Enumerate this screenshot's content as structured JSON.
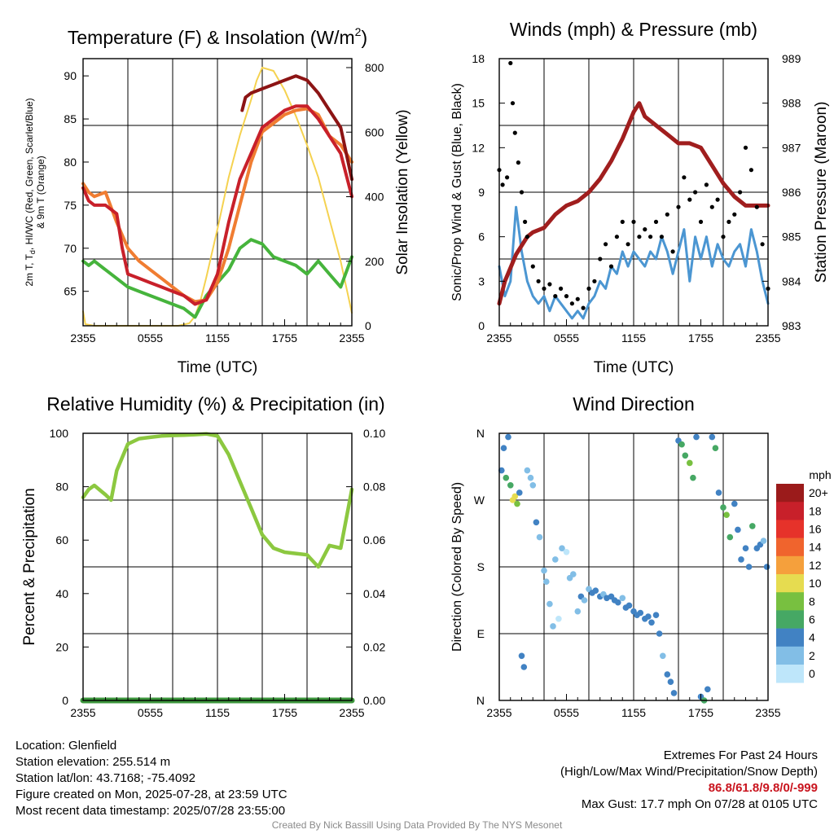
{
  "panels": {
    "temp": {
      "title_main": "Temperature (F) & Insolation (W/m",
      "title_sup": "2",
      "title_end": ")",
      "ylabel_left_line1_parts": [
        "2m T, T",
        "d",
        ", HI/WC (Red, Green, Scarlet/Blue)"
      ],
      "ylabel_left_line2": "& 9m T (Orange)",
      "ylabel_right": "Solar Insolation (Yellow)",
      "xlabel": "Time (UTC)",
      "yticks_left": [
        "90",
        "85",
        "80",
        "75",
        "70",
        "65"
      ],
      "yticks_right": [
        "800",
        "600",
        "400",
        "200",
        "0"
      ],
      "xticks": [
        "2355",
        "0555",
        "1155",
        "1755",
        "2355"
      ]
    },
    "wind": {
      "title": "Winds (mph) & Pressure (mb)",
      "ylabel_left": "Sonic/Prop Wind & Gust (Blue, Black)",
      "ylabel_right": "Station Pressure (Maroon)",
      "xlabel": "Time (UTC)",
      "yticks_left": [
        "18",
        "15",
        "12",
        "9",
        "6",
        "3",
        "0"
      ],
      "yticks_right": [
        "989",
        "988",
        "987",
        "986",
        "985",
        "984",
        "983"
      ],
      "xticks": [
        "2355",
        "0555",
        "1155",
        "1755",
        "2355"
      ]
    },
    "rh": {
      "title": "Relative Humidity (%) & Precipitation (in)",
      "ylabel_left": "Percent & Precipitation",
      "yticks_left": [
        "100",
        "80",
        "60",
        "40",
        "20",
        "0"
      ],
      "yticks_right": [
        "0.10",
        "0.08",
        "0.06",
        "0.04",
        "0.02",
        "0.00"
      ],
      "xticks": [
        "2355",
        "0555",
        "1155",
        "1755",
        "2355"
      ]
    },
    "dir": {
      "title": "Wind Direction",
      "ylabel_left": "Direction (Colored By Speed)",
      "yticks_left": [
        "N",
        "W",
        "S",
        "E",
        "N"
      ],
      "xticks": [
        "2355",
        "0555",
        "1155",
        "1755",
        "2355"
      ],
      "legend_title": "mph",
      "legend_labels": [
        "20+",
        "18",
        "16",
        "14",
        "12",
        "10",
        "8",
        "6",
        "4",
        "2",
        "0"
      ]
    }
  },
  "info": {
    "location": "Location: Glenfield",
    "elevation": "Station elevation: 255.514 m",
    "latlon": "Station lat/lon: 43.7168; -75.4092",
    "created": "Figure created on Mon, 2025-07-28, at 23:59 UTC",
    "recent": "Most recent data timestamp: 2025/07/28 23:55:00",
    "extremes_title": "Extremes For Past 24 Hours",
    "extremes_sub": "(High/Low/Max Wind/Precipitation/Snow Depth)",
    "extremes_values": "86.8/61.8/9.8/0/-999",
    "max_gust": "Max Gust: 17.7 mph On 07/28 at 0105 UTC"
  },
  "credit": "Created By Nick Bassill Using Data Provided By The NYS Mesonet",
  "colors": {
    "temp_red": "#c8202a",
    "dewpoint_green": "#46b43c",
    "heat_index_scarlet": "#8c1414",
    "temp9m_orange": "#f07d32",
    "insolation_yellow": "#f5d250",
    "wind_blue": "#4b96d2",
    "gust_black": "#000000",
    "pressure_maroon": "#a01e1e",
    "rh_green": "#8cc840",
    "precip_green": "#3c963c",
    "speed_scale": [
      "#9b1b1b",
      "#c8202a",
      "#e6322a",
      "#f0642d",
      "#f5a03c",
      "#e6dc50",
      "#78c040",
      "#46a864",
      "#4182c3",
      "#82bee6",
      "#bee6fa"
    ]
  },
  "chart_data": [
    {
      "type": "line",
      "title": "Temperature (F) & Insolation (W/m2)",
      "xlabel": "Time (UTC)",
      "ylabel": "2m T, Td, HI/WC (Red, Green, Scarlet/Blue) & 9m T (Orange)",
      "ylabel_right": "Solar Insolation (Yellow)",
      "x_unit": "hours after 2355 UTC",
      "xlim": [
        0,
        24
      ],
      "ylim": [
        61,
        92
      ],
      "ylim_right": [
        0,
        800
      ],
      "x_tick_labels": [
        "2355",
        "0555",
        "1155",
        "1755",
        "2355"
      ],
      "series": [
        {
          "name": "2m T",
          "axis": "left",
          "color": "#c8202a",
          "x": [
            0,
            0.5,
            1,
            2,
            3,
            3.5,
            4,
            5,
            6,
            7,
            8,
            9,
            10,
            11,
            12,
            13,
            14,
            15,
            16,
            17,
            18,
            19,
            20,
            21,
            22,
            23,
            24
          ],
          "y": [
            77,
            75.5,
            75,
            75,
            74,
            70,
            67,
            66.5,
            66,
            65.5,
            65,
            64.5,
            63.5,
            64,
            67,
            73,
            78,
            81,
            84,
            85,
            86,
            86.5,
            86.5,
            85,
            83,
            81,
            76
          ]
        },
        {
          "name": "Td",
          "axis": "left",
          "color": "#46b43c",
          "x": [
            0,
            0.5,
            1,
            2,
            3,
            4,
            5,
            6,
            7,
            8,
            9,
            10,
            11,
            12,
            13,
            14,
            15,
            16,
            17,
            18,
            19,
            20,
            21,
            22,
            23,
            24
          ],
          "y": [
            68.5,
            68,
            68.5,
            67.5,
            66.5,
            65.5,
            65,
            64.5,
            64,
            63.5,
            63,
            62,
            64.5,
            66,
            67.5,
            70,
            71,
            70.5,
            69,
            68.5,
            68,
            67,
            68.5,
            67,
            65.5,
            69
          ]
        },
        {
          "name": "HI/WC",
          "axis": "left",
          "color": "#8c1414",
          "x": [
            14.2,
            14.5,
            15,
            16,
            17,
            18,
            19,
            20,
            21,
            22,
            23,
            24
          ],
          "y": [
            86,
            87.5,
            88,
            88.5,
            89,
            89.5,
            90,
            89.5,
            88,
            86,
            84,
            78
          ]
        },
        {
          "name": "9m T",
          "axis": "left",
          "color": "#f07d32",
          "x": [
            0,
            0.5,
            1,
            2,
            3,
            4,
            5,
            6,
            7,
            8,
            9,
            10,
            11,
            12,
            13,
            14,
            15,
            16,
            17,
            18,
            19,
            20,
            21,
            22,
            23,
            24
          ],
          "y": [
            77.5,
            76.5,
            76,
            76.5,
            73,
            70,
            68.5,
            67.5,
            66.5,
            65.5,
            64.5,
            63.8,
            64,
            66,
            70,
            75,
            80,
            83.5,
            84.5,
            85.5,
            86,
            86.2,
            85.5,
            83,
            82,
            80
          ]
        },
        {
          "name": "Solar Insolation",
          "axis": "right",
          "color": "#f5d250",
          "x": [
            0,
            0.2,
            1,
            3,
            5,
            7,
            8.5,
            9.5,
            10,
            10.5,
            11,
            12,
            13,
            14,
            15,
            15.5,
            16,
            17,
            18,
            19,
            20,
            21,
            22,
            23,
            24
          ],
          "y": [
            45,
            5,
            0,
            0,
            0,
            0,
            0,
            8,
            30,
            80,
            150,
            300,
            460,
            590,
            700,
            760,
            800,
            790,
            730,
            650,
            560,
            460,
            330,
            200,
            40
          ]
        }
      ]
    },
    {
      "type": "line",
      "title": "Winds (mph) & Pressure (mb)",
      "xlabel": "Time (UTC)",
      "ylabel": "Sonic/Prop Wind & Gust (Blue, Black)",
      "ylabel_right": "Station Pressure (Maroon)",
      "x_unit": "hours after 2355 UTC",
      "xlim": [
        0,
        24
      ],
      "ylim": [
        0,
        18
      ],
      "ylim_right": [
        983,
        989
      ],
      "x_tick_labels": [
        "2355",
        "0555",
        "1155",
        "1755",
        "2355"
      ],
      "series": [
        {
          "name": "Sonic/Prop Wind",
          "axis": "left",
          "color": "#4b96d2",
          "x": [
            0,
            0.5,
            1,
            1.5,
            2,
            2.5,
            3,
            3.5,
            4,
            4.5,
            5,
            5.5,
            6,
            6.5,
            7,
            7.5,
            8,
            8.5,
            9,
            9.5,
            10,
            10.5,
            11,
            11.5,
            12,
            12.5,
            13,
            13.5,
            14,
            14.5,
            15,
            15.5,
            16,
            16.5,
            17,
            17.5,
            18,
            18.5,
            19,
            19.5,
            20,
            20.5,
            21,
            21.5,
            22,
            22.5,
            23,
            23.5,
            24
          ],
          "y": [
            4,
            2,
            3,
            8,
            5,
            3,
            2,
            1.5,
            2,
            1,
            2,
            1.5,
            1,
            0.5,
            1,
            0.5,
            1.5,
            2,
            3,
            2.5,
            4,
            3.5,
            5,
            4,
            5,
            4.5,
            4,
            5,
            4.5,
            6,
            5,
            3.5,
            5,
            6.5,
            3,
            6,
            4.5,
            6,
            4,
            5.5,
            4.5,
            4,
            5,
            5.5,
            4,
            6.5,
            5,
            3,
            1.5
          ]
        },
        {
          "name": "Gust",
          "axis": "left",
          "color": "#000000",
          "x": [
            0,
            0.3,
            0.7,
            1,
            1.2,
            1.4,
            1.7,
            2,
            2.3,
            2.5,
            3,
            3.5,
            4,
            4.5,
            5,
            5.5,
            6,
            6.5,
            7,
            7.5,
            8,
            8.5,
            9,
            9.5,
            10,
            10.5,
            11,
            11.5,
            12,
            12.5,
            13,
            13.5,
            14,
            14.5,
            15,
            15.5,
            16,
            16.5,
            17,
            17.5,
            18,
            18.5,
            19,
            19.5,
            20,
            20.5,
            21,
            21.5,
            22,
            22.5,
            23,
            23.5,
            24
          ],
          "y": [
            10.5,
            9.5,
            10,
            17.7,
            15,
            13,
            11,
            9,
            7,
            6,
            4,
            3,
            2.5,
            2.8,
            2,
            2.5,
            2,
            1.5,
            1.8,
            1.2,
            2.5,
            3,
            4.5,
            5.5,
            4,
            6,
            7,
            5.5,
            7,
            6,
            6.5,
            6,
            7,
            6,
            7.5,
            5,
            8,
            10,
            8.5,
            9,
            7,
            9.5,
            8,
            8.5,
            6,
            7,
            7.5,
            9,
            12,
            10.5,
            8,
            5.5,
            2.5
          ]
        },
        {
          "name": "Station Pressure",
          "axis": "right",
          "color": "#a01e1e",
          "x": [
            0,
            0.5,
            1,
            1.5,
            2,
            2.5,
            3,
            4,
            5,
            6,
            7,
            8,
            9,
            10,
            11,
            12,
            12.5,
            13,
            14,
            15,
            16,
            17,
            18,
            19,
            20,
            21,
            22,
            23,
            24
          ],
          "y": [
            983.5,
            984,
            984.3,
            984.6,
            984.8,
            985,
            985.1,
            985.2,
            985.5,
            985.7,
            985.8,
            986,
            986.3,
            986.7,
            987.2,
            987.8,
            988,
            987.7,
            987.5,
            987.3,
            987.1,
            987.1,
            987,
            986.6,
            986.2,
            985.9,
            985.7,
            985.7,
            985.7
          ]
        }
      ]
    },
    {
      "type": "line",
      "title": "Relative Humidity (%) & Precipitation (in)",
      "xlabel": "",
      "ylabel": "Percent & Precipitation",
      "x_unit": "hours after 2355 UTC",
      "xlim": [
        0,
        24
      ],
      "ylim": [
        0,
        100
      ],
      "ylim_right": [
        0,
        0.1
      ],
      "x_tick_labels": [
        "2355",
        "0555",
        "1155",
        "1755",
        "2355"
      ],
      "series": [
        {
          "name": "Relative Humidity",
          "axis": "left",
          "color": "#8cc840",
          "x": [
            0,
            0.5,
            1,
            2,
            2.5,
            3,
            4,
            5,
            6,
            7,
            8,
            9,
            10,
            11,
            12,
            13,
            14,
            15,
            16,
            17,
            18,
            19,
            20,
            21,
            22,
            23,
            24
          ],
          "y": [
            76,
            79,
            80.5,
            77,
            75,
            86,
            96,
            98,
            98.5,
            99,
            99.2,
            99.3,
            99.5,
            99.8,
            99,
            92,
            82,
            72,
            62,
            57,
            55.5,
            55,
            54.5,
            50,
            58,
            57,
            79
          ]
        },
        {
          "name": "Precipitation",
          "axis": "right",
          "color": "#3c963c",
          "x": [
            0,
            24
          ],
          "y": [
            0,
            0
          ]
        }
      ]
    },
    {
      "type": "scatter",
      "title": "Wind Direction",
      "xlabel": "",
      "ylabel": "Direction (Colored By Speed)",
      "x_unit": "hours after 2355 UTC",
      "xlim": [
        0,
        24
      ],
      "ylim": [
        0,
        360
      ],
      "y_tick_labels": [
        "N",
        "W",
        "S",
        "E",
        "N"
      ],
      "x_tick_labels": [
        "2355",
        "0555",
        "1155",
        "1755",
        "2355"
      ],
      "legend_title": "mph",
      "x": [
        0.2,
        0.4,
        0.6,
        0.8,
        1.0,
        1.2,
        1.4,
        1.6,
        1.8,
        2.0,
        2.2,
        2.5,
        2.8,
        3.0,
        3.3,
        3.6,
        4.0,
        4.2,
        4.5,
        4.8,
        5.0,
        5.3,
        5.6,
        6.0,
        6.3,
        6.6,
        7.0,
        7.3,
        7.6,
        8.0,
        8.3,
        8.6,
        9.0,
        9.3,
        9.6,
        10.0,
        10.3,
        10.6,
        11.0,
        11.3,
        11.6,
        12.0,
        12.3,
        12.6,
        13.0,
        13.3,
        13.6,
        14.0,
        14.3,
        14.6,
        15.0,
        15.3,
        15.6,
        16.0,
        16.3,
        16.6,
        17.0,
        17.3,
        17.6,
        18.0,
        18.3,
        18.6,
        19.0,
        19.3,
        19.6,
        20.0,
        20.3,
        20.6,
        21.0,
        21.3,
        21.6,
        22.0,
        22.3,
        22.6,
        23.0,
        23.3,
        23.6,
        23.9
      ],
      "y": [
        310,
        340,
        300,
        355,
        290,
        270,
        275,
        265,
        280,
        60,
        45,
        310,
        300,
        290,
        240,
        220,
        175,
        160,
        130,
        100,
        190,
        110,
        205,
        200,
        165,
        170,
        120,
        140,
        135,
        150,
        145,
        148,
        140,
        143,
        138,
        140,
        135,
        132,
        138,
        125,
        128,
        120,
        115,
        118,
        110,
        113,
        105,
        115,
        90,
        60,
        35,
        25,
        10,
        350,
        345,
        330,
        320,
        300,
        355,
        5,
        0,
        15,
        355,
        340,
        280,
        260,
        250,
        220,
        265,
        230,
        190,
        205,
        180,
        235,
        205,
        210,
        215,
        180
      ],
      "speeds": [
        4,
        3,
        5,
        4,
        6,
        9,
        10,
        8,
        4,
        3,
        4,
        2,
        2,
        1,
        3,
        1,
        2,
        1,
        1,
        2,
        2,
        0,
        1,
        0,
        1,
        1,
        2,
        3,
        1,
        2,
        3,
        3,
        3,
        2,
        3,
        3,
        4,
        3,
        2,
        3,
        4,
        3,
        3,
        4,
        4,
        3,
        4,
        4,
        3,
        2,
        3,
        3,
        3,
        4,
        5,
        6,
        7,
        6,
        4,
        4,
        6,
        4,
        3,
        6,
        4,
        6,
        7,
        5,
        4,
        3,
        3,
        4,
        4,
        5,
        4,
        3,
        2,
        3
      ]
    }
  ]
}
